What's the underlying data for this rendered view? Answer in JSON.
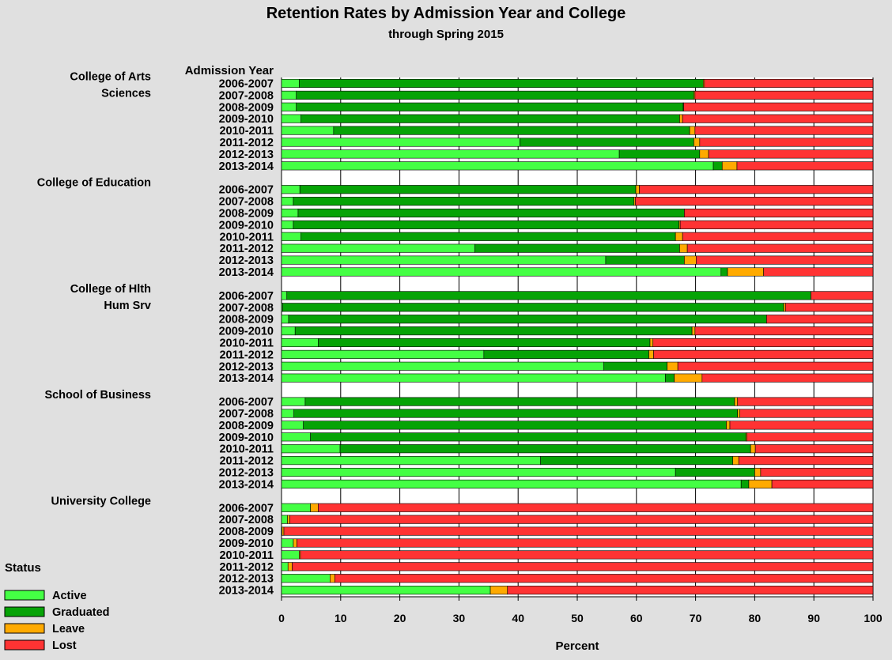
{
  "title": "Retention Rates by Admission Year and College",
  "subtitle": "through Spring 2015",
  "xlabel": "Percent",
  "ycolumn_header": "Admission Year",
  "legend_title": "Status",
  "colors": {
    "Active": "#44ff44",
    "Graduated": "#06a306",
    "Leave": "#ffaa00",
    "Lost": "#ff3333"
  },
  "chart_data": {
    "type": "bar",
    "orientation": "horizontal",
    "stacked": true,
    "title": "Retention Rates by Admission Year and College",
    "subtitle": "through Spring 2015",
    "xlabel": "Percent",
    "xlim": [
      0,
      100
    ],
    "xticks": [
      0,
      10,
      20,
      30,
      40,
      50,
      60,
      70,
      80,
      90,
      100
    ],
    "grid": true,
    "legend_position": "bottom-left",
    "series_names": [
      "Active",
      "Graduated",
      "Leave",
      "Lost"
    ],
    "groups": [
      {
        "label_lines": [
          "College of Arts",
          "Sciences"
        ],
        "rows": [
          {
            "year": "2006-2007",
            "values": [
              3.0,
              68.3,
              0.2,
              28.5
            ]
          },
          {
            "year": "2007-2008",
            "values": [
              2.5,
              67.2,
              0.2,
              30.1
            ]
          },
          {
            "year": "2008-2009",
            "values": [
              2.5,
              65.4,
              0.1,
              32.0
            ]
          },
          {
            "year": "2009-2010",
            "values": [
              3.3,
              64.0,
              0.5,
              32.2
            ]
          },
          {
            "year": "2010-2011",
            "values": [
              8.8,
              60.2,
              0.9,
              30.1
            ]
          },
          {
            "year": "2011-2012",
            "values": [
              40.3,
              29.4,
              1.0,
              29.3
            ]
          },
          {
            "year": "2012-2013",
            "values": [
              57.1,
              13.6,
              1.5,
              27.8
            ]
          },
          {
            "year": "2013-2014",
            "values": [
              73.0,
              1.5,
              2.5,
              23.0
            ]
          }
        ]
      },
      {
        "label_lines": [
          "College of Education"
        ],
        "rows": [
          {
            "year": "2006-2007",
            "values": [
              3.1,
              56.8,
              0.6,
              39.5
            ]
          },
          {
            "year": "2007-2008",
            "values": [
              2.0,
              57.6,
              0.2,
              40.2
            ]
          },
          {
            "year": "2008-2009",
            "values": [
              2.8,
              65.3,
              0.0,
              31.9
            ]
          },
          {
            "year": "2009-2010",
            "values": [
              2.0,
              65.2,
              0.2,
              32.6
            ]
          },
          {
            "year": "2010-2011",
            "values": [
              3.3,
              63.3,
              1.2,
              32.2
            ]
          },
          {
            "year": "2011-2012",
            "values": [
              32.7,
              34.6,
              1.3,
              31.4
            ]
          },
          {
            "year": "2012-2013",
            "values": [
              54.8,
              13.3,
              2.0,
              29.9
            ]
          },
          {
            "year": "2013-2014",
            "values": [
              74.3,
              1.1,
              6.1,
              18.5
            ]
          }
        ]
      },
      {
        "label_lines": [
          "College of Hlth",
          "Hum Srv"
        ],
        "rows": [
          {
            "year": "2006-2007",
            "values": [
              0.9,
              88.6,
              0.0,
              10.5
            ]
          },
          {
            "year": "2007-2008",
            "values": [
              0.2,
              84.7,
              0.3,
              14.8
            ]
          },
          {
            "year": "2008-2009",
            "values": [
              1.2,
              80.8,
              0.0,
              18.0
            ]
          },
          {
            "year": "2009-2010",
            "values": [
              2.3,
              67.1,
              0.5,
              30.1
            ]
          },
          {
            "year": "2010-2011",
            "values": [
              6.2,
              56.1,
              0.5,
              37.2
            ]
          },
          {
            "year": "2011-2012",
            "values": [
              34.2,
              27.9,
              0.8,
              37.1
            ]
          },
          {
            "year": "2012-2013",
            "values": [
              54.5,
              10.7,
              1.8,
              33.0
            ]
          },
          {
            "year": "2013-2014",
            "values": [
              64.9,
              1.5,
              4.7,
              28.9
            ]
          }
        ]
      },
      {
        "label_lines": [
          "School of Business"
        ],
        "rows": [
          {
            "year": "2006-2007",
            "values": [
              4.0,
              72.6,
              0.5,
              22.9
            ]
          },
          {
            "year": "2007-2008",
            "values": [
              2.1,
              75.0,
              0.4,
              22.5
            ]
          },
          {
            "year": "2008-2009",
            "values": [
              3.7,
              71.5,
              0.6,
              24.2
            ]
          },
          {
            "year": "2009-2010",
            "values": [
              4.9,
              73.6,
              0.2,
              21.3
            ]
          },
          {
            "year": "2010-2011",
            "values": [
              9.9,
              69.4,
              0.8,
              19.9
            ]
          },
          {
            "year": "2011-2012",
            "values": [
              43.8,
              32.5,
              1.0,
              22.7
            ]
          },
          {
            "year": "2012-2013",
            "values": [
              66.6,
              13.4,
              1.0,
              19.0
            ]
          },
          {
            "year": "2013-2014",
            "values": [
              77.7,
              1.3,
              3.9,
              17.1
            ]
          }
        ]
      },
      {
        "label_lines": [
          "University College"
        ],
        "rows": [
          {
            "year": "2006-2007",
            "values": [
              4.9,
              0.0,
              1.3,
              93.8
            ]
          },
          {
            "year": "2007-2008",
            "values": [
              1.0,
              0.0,
              0.4,
              98.6
            ]
          },
          {
            "year": "2008-2009",
            "values": [
              0.1,
              0.0,
              0.3,
              99.6
            ]
          },
          {
            "year": "2009-2010",
            "values": [
              2.0,
              0.0,
              0.6,
              97.4
            ]
          },
          {
            "year": "2010-2011",
            "values": [
              3.0,
              0.0,
              0.2,
              96.8
            ]
          },
          {
            "year": "2011-2012",
            "values": [
              1.1,
              0.0,
              0.7,
              98.2
            ]
          },
          {
            "year": "2012-2013",
            "values": [
              8.2,
              0.0,
              0.8,
              91.0
            ]
          },
          {
            "year": "2013-2014",
            "values": [
              35.3,
              0.0,
              2.9,
              61.8
            ]
          }
        ]
      }
    ]
  }
}
